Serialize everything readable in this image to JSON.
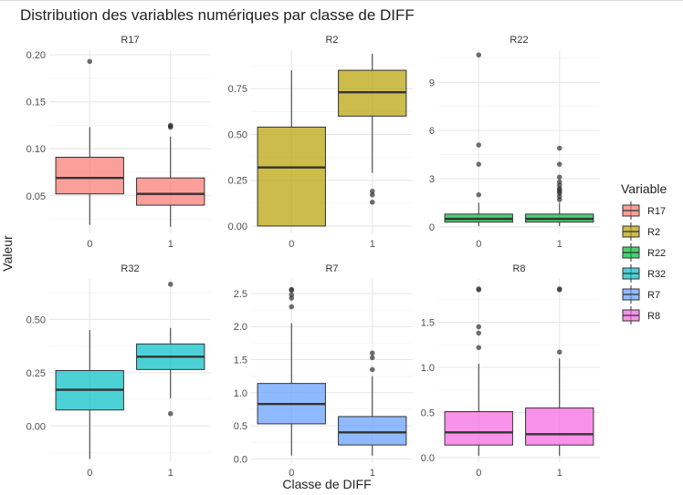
{
  "chart_data": {
    "type": "box",
    "title": "Distribution des variables numériques par classe de DIFF",
    "xlabel": "Classe de DIFF",
    "ylabel": "Valeur",
    "categories": [
      "0",
      "1"
    ],
    "legend": {
      "title": "Variable",
      "position": "right",
      "items": [
        {
          "label": "R17",
          "color": "#F8766D"
        },
        {
          "label": "R2",
          "color": "#B79F00"
        },
        {
          "label": "R22",
          "color": "#00BA38"
        },
        {
          "label": "R32",
          "color": "#00BFC4"
        },
        {
          "label": "R7",
          "color": "#619CFF"
        },
        {
          "label": "R8",
          "color": "#F564E3"
        }
      ]
    },
    "grid": true,
    "panels": [
      {
        "name": "R17",
        "color": "#F8766D",
        "ylim": [
          0.01,
          0.205
        ],
        "yticks": [
          0.05,
          0.1,
          0.15,
          0.2
        ],
        "ytick_labels": [
          "0.05",
          "0.10",
          "0.15",
          "0.20"
        ],
        "boxes": [
          {
            "x": "0",
            "whisker_low": 0.019,
            "q1": 0.052,
            "median": 0.069,
            "q3": 0.091,
            "whisker_high": 0.123,
            "outliers": [
              0.193
            ]
          },
          {
            "x": "1",
            "whisker_low": 0.017,
            "q1": 0.04,
            "median": 0.052,
            "q3": 0.069,
            "whisker_high": 0.113,
            "outliers": [
              0.123,
              0.124,
              0.125
            ]
          }
        ]
      },
      {
        "name": "R2",
        "color": "#B79F00",
        "ylim": [
          -0.04,
          0.96
        ],
        "yticks": [
          0.0,
          0.25,
          0.5,
          0.75
        ],
        "ytick_labels": [
          "0.00",
          "0.25",
          "0.50",
          "0.75"
        ],
        "boxes": [
          {
            "x": "0",
            "whisker_low": 0.0,
            "q1": 0.0,
            "median": 0.32,
            "q3": 0.54,
            "whisker_high": 0.85,
            "outliers": []
          },
          {
            "x": "1",
            "whisker_low": 0.29,
            "q1": 0.6,
            "median": 0.73,
            "q3": 0.85,
            "whisker_high": 0.94,
            "outliers": [
              0.19,
              0.17,
              0.13
            ]
          }
        ]
      },
      {
        "name": "R22",
        "color": "#00BA38",
        "ylim": [
          -0.4,
          11.0
        ],
        "yticks": [
          0,
          3,
          6,
          9
        ],
        "ytick_labels": [
          "0",
          "3",
          "6",
          "9"
        ],
        "boxes": [
          {
            "x": "0",
            "whisker_low": 0.05,
            "q1": 0.3,
            "median": 0.5,
            "q3": 0.8,
            "whisker_high": 1.5,
            "outliers": [
              2.0,
              3.9,
              5.1,
              10.7
            ]
          },
          {
            "x": "1",
            "whisker_low": 0.05,
            "q1": 0.3,
            "median": 0.5,
            "q3": 0.8,
            "whisker_high": 1.5,
            "outliers": [
              1.7,
              1.9,
              2.1,
              2.2,
              2.3,
              2.4,
              2.6,
              2.8,
              3.1,
              3.9,
              4.9
            ]
          }
        ]
      },
      {
        "name": "R32",
        "color": "#00BFC4",
        "ylim": [
          -0.17,
          0.69
        ],
        "yticks": [
          0.0,
          0.25,
          0.5
        ],
        "ytick_labels": [
          "0.00",
          "0.25",
          "0.50"
        ],
        "boxes": [
          {
            "x": "0",
            "whisker_low": -0.155,
            "q1": 0.075,
            "median": 0.17,
            "q3": 0.26,
            "whisker_high": 0.45,
            "outliers": []
          },
          {
            "x": "1",
            "whisker_low": 0.13,
            "q1": 0.265,
            "median": 0.325,
            "q3": 0.385,
            "whisker_high": 0.46,
            "outliers": [
              0.665,
              0.058
            ]
          }
        ]
      },
      {
        "name": "R7",
        "color": "#619CFF",
        "ylim": [
          -0.05,
          2.72
        ],
        "yticks": [
          0.0,
          0.5,
          1.0,
          1.5,
          2.0,
          2.5
        ],
        "ytick_labels": [
          "0.0",
          "0.5",
          "1.0",
          "1.5",
          "2.0",
          "2.5"
        ],
        "boxes": [
          {
            "x": "0",
            "whisker_low": 0.05,
            "q1": 0.53,
            "median": 0.83,
            "q3": 1.14,
            "whisker_high": 2.05,
            "outliers": [
              2.3,
              2.43,
              2.48,
              2.55,
              2.56
            ]
          },
          {
            "x": "1",
            "whisker_low": 0.05,
            "q1": 0.21,
            "median": 0.4,
            "q3": 0.64,
            "whisker_high": 1.25,
            "outliers": [
              1.35,
              1.53,
              1.6
            ]
          }
        ]
      },
      {
        "name": "R8",
        "color": "#F564E3",
        "ylim": [
          -0.05,
          1.98
        ],
        "yticks": [
          0.0,
          0.5,
          1.0,
          1.5
        ],
        "ytick_labels": [
          "0.0",
          "0.5",
          "1.0",
          "1.5"
        ],
        "boxes": [
          {
            "x": "0",
            "whisker_low": 0.02,
            "q1": 0.14,
            "median": 0.28,
            "q3": 0.51,
            "whisker_high": 1.04,
            "outliers": [
              1.22,
              1.38,
              1.45,
              1.86,
              1.87
            ]
          },
          {
            "x": "1",
            "whisker_low": 0.02,
            "q1": 0.14,
            "median": 0.26,
            "q3": 0.55,
            "whisker_high": 1.1,
            "outliers": [
              1.17,
              1.86,
              1.87
            ]
          }
        ]
      }
    ]
  }
}
